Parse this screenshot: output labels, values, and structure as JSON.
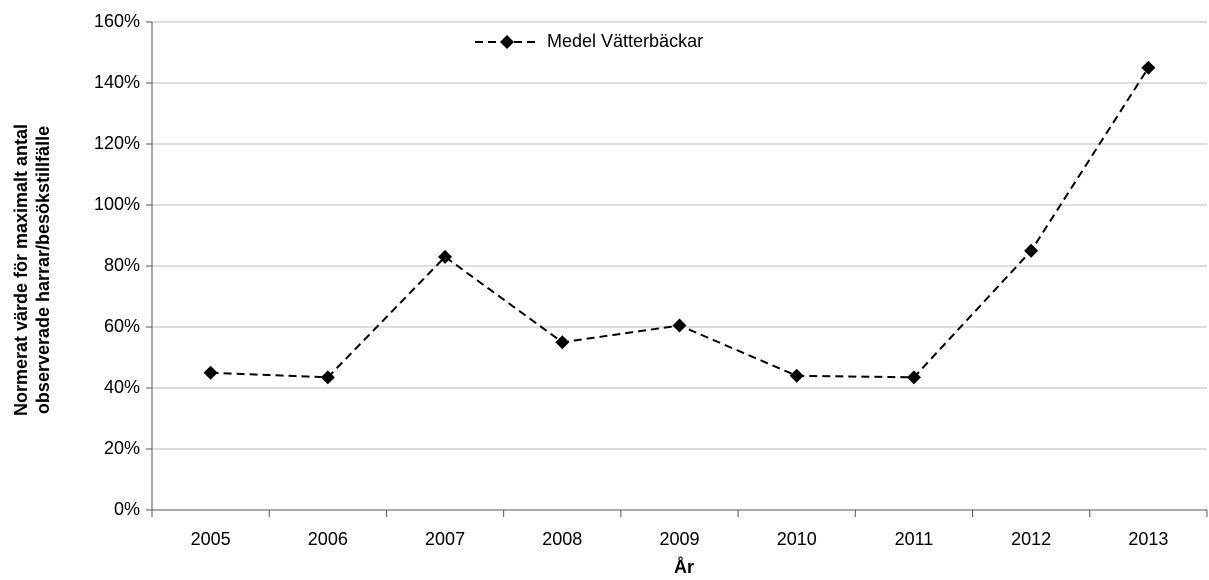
{
  "chart_data": {
    "type": "line",
    "xlabel": "År",
    "ylabel": [
      "Normerat värde för maximalt  antal",
      "observerade harrar/besökstillfälle"
    ],
    "categories": [
      "2005",
      "2006",
      "2007",
      "2008",
      "2009",
      "2010",
      "2011",
      "2012",
      "2013"
    ],
    "series": [
      {
        "name": "Medel Vätterbäckar",
        "color": "#000000",
        "values": [
          45,
          43.5,
          83,
          55,
          60.5,
          44,
          43.5,
          85,
          145
        ]
      }
    ],
    "ylim": [
      0,
      160
    ],
    "yticks": [
      {
        "value": 0,
        "label": "0%"
      },
      {
        "value": 20,
        "label": "20%"
      },
      {
        "value": 40,
        "label": "40%"
      },
      {
        "value": 60,
        "label": "60%"
      },
      {
        "value": 80,
        "label": "80%"
      },
      {
        "value": 100,
        "label": "100%"
      },
      {
        "value": 120,
        "label": "120%"
      },
      {
        "value": 140,
        "label": "140%"
      },
      {
        "value": 160,
        "label": "160%"
      }
    ],
    "grid": true,
    "legend": "top"
  }
}
